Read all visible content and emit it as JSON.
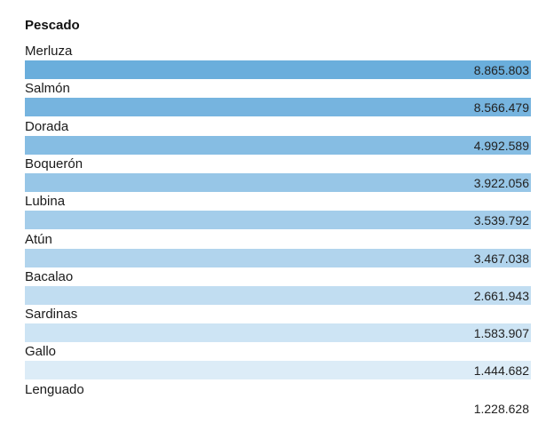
{
  "chart_data": {
    "type": "table",
    "header": "Pescado",
    "rows": [
      {
        "label": "Merluza",
        "value": "8.865.803",
        "color": "#6aaedc"
      },
      {
        "label": "Salmón",
        "value": "8.566.479",
        "color": "#76b4df"
      },
      {
        "label": "Dorada",
        "value": "4.992.589",
        "color": "#86bde3"
      },
      {
        "label": "Boquerón",
        "value": "3.922.056",
        "color": "#97c6e7"
      },
      {
        "label": "Lubina",
        "value": "3.539.792",
        "color": "#a4cdea"
      },
      {
        "label": "Atún",
        "value": "3.467.038",
        "color": "#b1d4ed"
      },
      {
        "label": "Bacalao",
        "value": "2.661.943",
        "color": "#c1ddf1"
      },
      {
        "label": "Sardinas",
        "value": "1.583.907",
        "color": "#cde4f4"
      },
      {
        "label": "Gallo",
        "value": "1.444.682",
        "color": "#dcecf7"
      },
      {
        "label": "Lenguado",
        "value": "1.228.628",
        "color": "#ffffff"
      }
    ]
  }
}
